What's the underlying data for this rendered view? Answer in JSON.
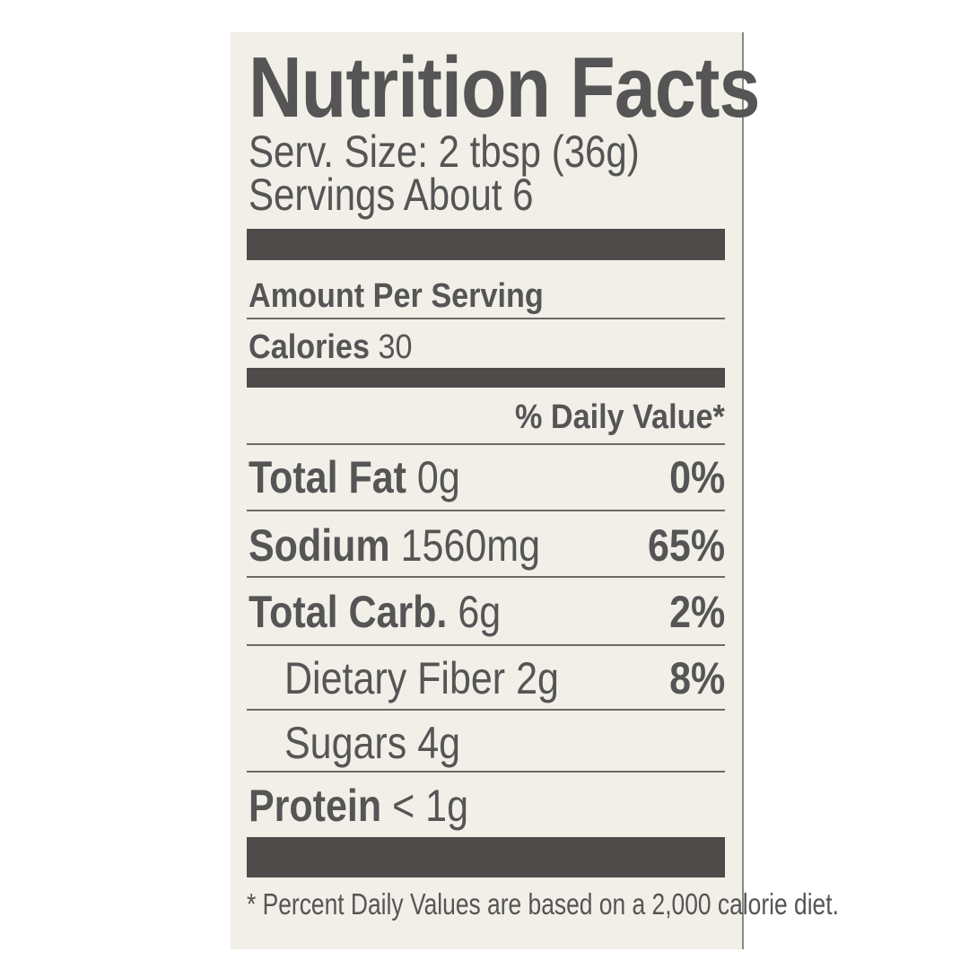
{
  "title": "Nutrition Facts",
  "serving_size": "Serv. Size: 2 tbsp (36g)",
  "servings": "Servings About 6",
  "amount_per_serving": "Amount Per Serving",
  "calories": {
    "label": "Calories",
    "value": "30"
  },
  "daily_value_header": "% Daily Value*",
  "nutrients": [
    {
      "label": "Total Fat",
      "amount": "0g",
      "dv": "0%"
    },
    {
      "label": "Sodium",
      "amount": "1560mg",
      "dv": "65%"
    },
    {
      "label": "Total Carb.",
      "amount": "6g",
      "dv": "2%"
    },
    {
      "label": "Dietary Fiber",
      "amount": "2g",
      "dv": "8%"
    },
    {
      "label": "Sugars",
      "amount": "4g",
      "dv": ""
    },
    {
      "label": "Protein",
      "amount": "< 1g",
      "dv": ""
    }
  ],
  "footnote": "* Percent Daily Values are based on a 2,000 calorie diet.",
  "colors": {
    "text": "#555555",
    "bars": "#4d4c4a",
    "background": "#f1efe8"
  }
}
